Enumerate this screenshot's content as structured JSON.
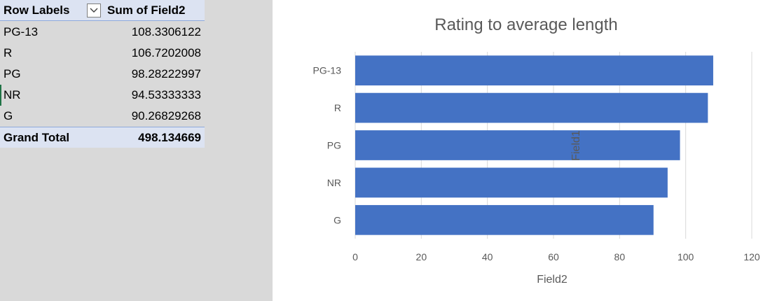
{
  "pivot": {
    "header": {
      "row_labels": "Row Labels",
      "sum_label": "Sum of Field2",
      "filter_icon": "chevron-down-icon"
    },
    "rows": [
      {
        "label": "PG-13",
        "value": "108.3306122"
      },
      {
        "label": "R",
        "value": "106.7202008"
      },
      {
        "label": "PG",
        "value": "98.28222997"
      },
      {
        "label": "NR",
        "value": "94.53333333"
      },
      {
        "label": "G",
        "value": "90.26829268"
      }
    ],
    "total": {
      "label": "Grand Total",
      "value": "498.134669"
    }
  },
  "colors": {
    "bar": "#4472c4",
    "pivot_header": "#dce3f2",
    "pivot_border": "#8ea9db",
    "grid": "#d9d9d9",
    "active_cell_marker": "#217346"
  },
  "chart_data": {
    "type": "bar",
    "orientation": "horizontal",
    "title": "Rating to average length",
    "xlabel": "Field2",
    "ylabel": "Field1",
    "categories": [
      "PG-13",
      "R",
      "PG",
      "NR",
      "G"
    ],
    "values": [
      108.3306122,
      106.7202008,
      98.28222997,
      94.53333333,
      90.26829268
    ],
    "xlim": [
      0,
      120
    ],
    "xticks": [
      "0",
      "20",
      "40",
      "60",
      "80",
      "100",
      "120"
    ],
    "grid": true,
    "legend": "none"
  }
}
